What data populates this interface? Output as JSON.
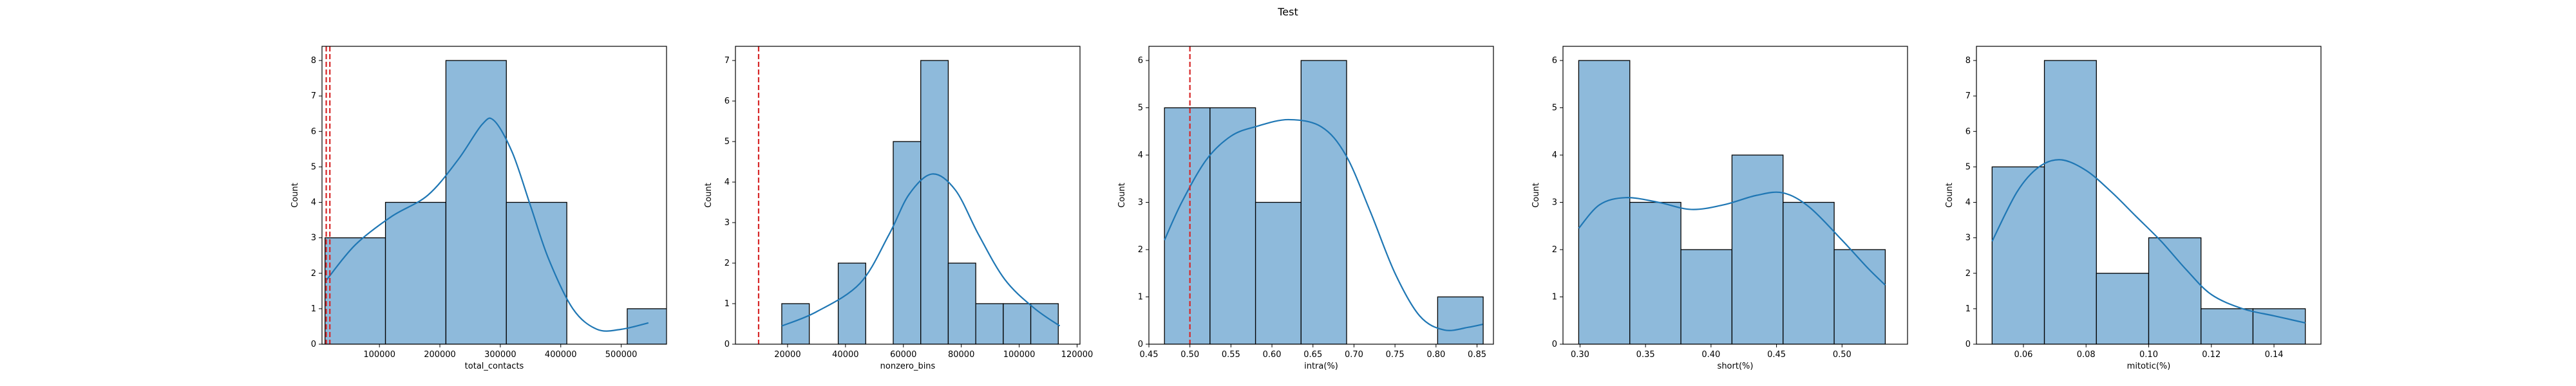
{
  "figure": {
    "title": "Test"
  },
  "chart_data": [
    {
      "type": "histogram",
      "xlabel": "total_contacts",
      "ylabel": "Count",
      "xlim": [
        5000,
        575000
      ],
      "ylim": [
        0,
        8.4
      ],
      "xticks": [
        100000,
        200000,
        300000,
        400000,
        500000
      ],
      "xtick_labels": [
        "100000",
        "200000",
        "300000",
        "400000",
        "500000"
      ],
      "yticks": [
        0,
        1,
        2,
        3,
        4,
        5,
        6,
        7,
        8
      ],
      "bins": [
        {
          "start": 10000,
          "end": 110000,
          "count": 3
        },
        {
          "start": 110000,
          "end": 210000,
          "count": 4
        },
        {
          "start": 210000,
          "end": 310000,
          "count": 8
        },
        {
          "start": 310000,
          "end": 410000,
          "count": 4
        },
        {
          "start": 410000,
          "end": 510000,
          "count": 0
        },
        {
          "start": 510000,
          "end": 610000,
          "count": 1
        }
      ],
      "kde": [
        [
          12000,
          1.8
        ],
        [
          60000,
          2.8
        ],
        [
          120000,
          3.6
        ],
        [
          180000,
          4.2
        ],
        [
          230000,
          5.2
        ],
        [
          270000,
          6.2
        ],
        [
          290000,
          6.3
        ],
        [
          320000,
          5.4
        ],
        [
          350000,
          3.9
        ],
        [
          380000,
          2.4
        ],
        [
          420000,
          1.0
        ],
        [
          460000,
          0.42
        ],
        [
          500000,
          0.42
        ],
        [
          545000,
          0.6
        ]
      ],
      "vlines": [
        12000,
        18000
      ],
      "vline_color": "#d62728"
    },
    {
      "type": "histogram",
      "xlabel": "nonzero_bins",
      "ylabel": "Count",
      "xlim": [
        2000,
        121000
      ],
      "ylim": [
        0,
        7.35
      ],
      "xticks": [
        20000,
        40000,
        60000,
        80000,
        100000,
        120000
      ],
      "xtick_labels": [
        "20000",
        "40000",
        "60000",
        "80000",
        "100000",
        "120000"
      ],
      "yticks": [
        0,
        1,
        2,
        3,
        4,
        5,
        6,
        7
      ],
      "bins": [
        {
          "start": 18000,
          "end": 27500,
          "count": 1
        },
        {
          "start": 37500,
          "end": 47000,
          "count": 2
        },
        {
          "start": 56500,
          "end": 66000,
          "count": 5
        },
        {
          "start": 66000,
          "end": 75500,
          "count": 7
        },
        {
          "start": 75500,
          "end": 85000,
          "count": 2
        },
        {
          "start": 85000,
          "end": 94500,
          "count": 1
        },
        {
          "start": 94500,
          "end": 104000,
          "count": 1
        },
        {
          "start": 104000,
          "end": 113500,
          "count": 1
        }
      ],
      "kde": [
        [
          18000,
          0.45
        ],
        [
          30000,
          0.8
        ],
        [
          45000,
          1.5
        ],
        [
          55000,
          2.7
        ],
        [
          62000,
          3.7
        ],
        [
          70000,
          4.2
        ],
        [
          78000,
          3.8
        ],
        [
          86000,
          2.7
        ],
        [
          95000,
          1.6
        ],
        [
          105000,
          0.9
        ],
        [
          114000,
          0.45
        ]
      ],
      "vlines": [
        10000
      ],
      "vline_color": "#d62728"
    },
    {
      "type": "histogram",
      "xlabel": "intra(%)",
      "ylabel": "Count",
      "xlim": [
        0.45,
        0.87
      ],
      "ylim": [
        0,
        6.3
      ],
      "xticks": [
        0.45,
        0.5,
        0.55,
        0.6,
        0.65,
        0.7,
        0.75,
        0.8,
        0.85
      ],
      "xtick_labels": [
        "0.45",
        "0.50",
        "0.55",
        "0.60",
        "0.65",
        "0.70",
        "0.75",
        "0.80",
        "0.85"
      ],
      "yticks": [
        0,
        1,
        2,
        3,
        4,
        5,
        6
      ],
      "bins": [
        {
          "start": 0.469,
          "end": 0.5245,
          "count": 5
        },
        {
          "start": 0.5245,
          "end": 0.58,
          "count": 5
        },
        {
          "start": 0.58,
          "end": 0.6355,
          "count": 3
        },
        {
          "start": 0.6355,
          "end": 0.691,
          "count": 6
        },
        {
          "start": 0.691,
          "end": 0.7465,
          "count": 0
        },
        {
          "start": 0.7465,
          "end": 0.802,
          "count": 0
        },
        {
          "start": 0.802,
          "end": 0.8575,
          "count": 1
        }
      ],
      "kde": [
        [
          0.469,
          2.2
        ],
        [
          0.49,
          3.0
        ],
        [
          0.52,
          3.9
        ],
        [
          0.55,
          4.4
        ],
        [
          0.58,
          4.6
        ],
        [
          0.62,
          4.75
        ],
        [
          0.66,
          4.6
        ],
        [
          0.69,
          4.0
        ],
        [
          0.72,
          2.8
        ],
        [
          0.75,
          1.5
        ],
        [
          0.78,
          0.6
        ],
        [
          0.81,
          0.3
        ],
        [
          0.84,
          0.36
        ],
        [
          0.857,
          0.42
        ]
      ],
      "vlines": [
        0.5
      ],
      "vline_color": "#d62728"
    },
    {
      "type": "histogram",
      "xlabel": "short(%)",
      "ylabel": "Count",
      "xlim": [
        0.287,
        0.55
      ],
      "ylim": [
        0,
        6.3
      ],
      "xticks": [
        0.3,
        0.35,
        0.4,
        0.45,
        0.5
      ],
      "xtick_labels": [
        "0.30",
        "0.35",
        "0.40",
        "0.45",
        "0.50"
      ],
      "yticks": [
        0,
        1,
        2,
        3,
        4,
        5,
        6
      ],
      "bins": [
        {
          "start": 0.299,
          "end": 0.338,
          "count": 6
        },
        {
          "start": 0.338,
          "end": 0.377,
          "count": 3
        },
        {
          "start": 0.377,
          "end": 0.416,
          "count": 2
        },
        {
          "start": 0.416,
          "end": 0.455,
          "count": 4
        },
        {
          "start": 0.455,
          "end": 0.494,
          "count": 3
        },
        {
          "start": 0.494,
          "end": 0.533,
          "count": 2
        }
      ],
      "kde": [
        [
          0.299,
          2.45
        ],
        [
          0.315,
          2.95
        ],
        [
          0.335,
          3.1
        ],
        [
          0.36,
          3.0
        ],
        [
          0.385,
          2.85
        ],
        [
          0.41,
          2.95
        ],
        [
          0.435,
          3.15
        ],
        [
          0.455,
          3.2
        ],
        [
          0.475,
          2.9
        ],
        [
          0.5,
          2.2
        ],
        [
          0.52,
          1.6
        ],
        [
          0.533,
          1.25
        ]
      ],
      "vlines": [],
      "vline_color": "#d62728"
    },
    {
      "type": "histogram",
      "xlabel": "mitotic(%)",
      "ylabel": "Count",
      "xlim": [
        0.045,
        0.155
      ],
      "ylim": [
        0,
        8.4
      ],
      "xticks": [
        0.06,
        0.08,
        0.1,
        0.12,
        0.14
      ],
      "xtick_labels": [
        "0.06",
        "0.08",
        "0.10",
        "0.12",
        "0.14"
      ],
      "yticks": [
        0,
        1,
        2,
        3,
        4,
        5,
        6,
        7,
        8
      ],
      "bins": [
        {
          "start": 0.05,
          "end": 0.0667,
          "count": 5
        },
        {
          "start": 0.0667,
          "end": 0.0833,
          "count": 8
        },
        {
          "start": 0.0833,
          "end": 0.1,
          "count": 2
        },
        {
          "start": 0.1,
          "end": 0.1167,
          "count": 3
        },
        {
          "start": 0.1167,
          "end": 0.1333,
          "count": 1
        },
        {
          "start": 0.1333,
          "end": 0.15,
          "count": 1
        }
      ],
      "kde": [
        [
          0.05,
          2.9
        ],
        [
          0.058,
          4.3
        ],
        [
          0.065,
          5.0
        ],
        [
          0.072,
          5.2
        ],
        [
          0.08,
          4.9
        ],
        [
          0.088,
          4.3
        ],
        [
          0.096,
          3.6
        ],
        [
          0.104,
          2.9
        ],
        [
          0.112,
          2.1
        ],
        [
          0.12,
          1.4
        ],
        [
          0.13,
          1.0
        ],
        [
          0.14,
          0.8
        ],
        [
          0.15,
          0.6
        ]
      ],
      "vlines": [],
      "vline_color": "#d62728"
    }
  ]
}
